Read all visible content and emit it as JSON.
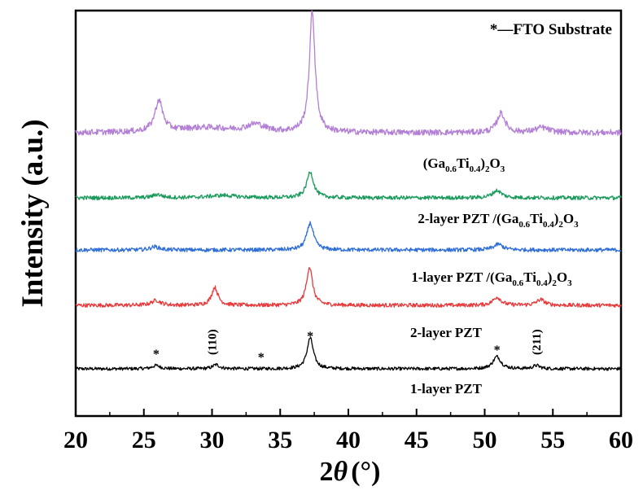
{
  "chart_data": {
    "type": "line",
    "title": "",
    "xlabel": {
      "prefix": "2",
      "symbol": "θ",
      "unit": "(°)"
    },
    "ylabel": "Intensity (a.u.)",
    "xlim": [
      20,
      60
    ],
    "xticks": [
      "20",
      "25",
      "30",
      "35",
      "40",
      "45",
      "50",
      "55",
      "60"
    ],
    "yticks_shown": false,
    "legend_note": "*—FTO Substrate",
    "series": [
      {
        "name": "1-layer PZT",
        "label_parts": [
          {
            "t": "1-layer PZT"
          }
        ],
        "color": "#000000",
        "offset": 0,
        "baseline": 10,
        "noise": 2,
        "peaks": [
          [
            25.9,
            4,
            0.35
          ],
          [
            30.3,
            5,
            0.3
          ],
          [
            37.2,
            38,
            0.28
          ],
          [
            50.9,
            15,
            0.35
          ],
          [
            53.8,
            4,
            0.3
          ]
        ]
      },
      {
        "name": "2-layer PZT",
        "label_parts": [
          {
            "t": "2-layer PZT"
          }
        ],
        "color": "#e8393b",
        "offset": 78,
        "baseline": 10,
        "noise": 2.4,
        "peaks": [
          [
            25.9,
            6,
            0.4
          ],
          [
            30.2,
            22,
            0.28
          ],
          [
            37.15,
            47,
            0.27
          ],
          [
            50.9,
            10,
            0.35
          ],
          [
            54.1,
            7,
            0.35
          ]
        ]
      },
      {
        "name": "1-layer PZT /(Ga0.6Ti0.4)2O3",
        "label_parts": [
          {
            "t": "1-layer PZT /(Ga"
          },
          {
            "sub": "0.6"
          },
          {
            "t": "Ti"
          },
          {
            "sub": "0.4"
          },
          {
            "t": ")"
          },
          {
            "sub": "2"
          },
          {
            "t": "O"
          },
          {
            "sub": "3"
          }
        ],
        "color": "#2e6ed6",
        "offset": 146,
        "baseline": 10,
        "noise": 2.4,
        "peaks": [
          [
            25.8,
            4,
            0.4
          ],
          [
            37.2,
            33,
            0.3
          ],
          [
            51.0,
            7,
            0.4
          ]
        ]
      },
      {
        "name": "2-layer PZT /(Ga0.6Ti0.4)2O3",
        "label_parts": [
          {
            "t": "2-layer PZT /(Ga"
          },
          {
            "sub": "0.6"
          },
          {
            "t": "Ti"
          },
          {
            "sub": "0.4"
          },
          {
            "t": ")"
          },
          {
            "sub": "2"
          },
          {
            "t": "O"
          },
          {
            "sub": "3"
          }
        ],
        "color": "#1a9b5c",
        "offset": 210,
        "baseline": 10,
        "noise": 2.4,
        "peaks": [
          [
            26.0,
            4,
            0.4
          ],
          [
            30.8,
            3,
            1.2
          ],
          [
            37.2,
            32,
            0.3
          ],
          [
            50.9,
            9,
            0.4
          ]
        ]
      },
      {
        "name": "(Ga0.6Ti0.4)2O3",
        "label_parts": [
          {
            "t": "(Ga"
          },
          {
            "sub": "0.6"
          },
          {
            "t": "Ti"
          },
          {
            "sub": "0.4"
          },
          {
            "t": ")"
          },
          {
            "sub": "2"
          },
          {
            "t": "O"
          },
          {
            "sub": "3"
          }
        ],
        "color": "#b37fd6",
        "offset": 290,
        "baseline": 10,
        "noise": 3.6,
        "peaks": [
          [
            26.1,
            38,
            0.35
          ],
          [
            29.5,
            6,
            2.5
          ],
          [
            33.2,
            9,
            0.8
          ],
          [
            37.35,
            148,
            0.25
          ],
          [
            51.2,
            24,
            0.35
          ],
          [
            54.2,
            6,
            0.6
          ]
        ]
      }
    ],
    "annotations": [
      {
        "text": "*",
        "x": 25.9,
        "series": "1-layer PZT"
      },
      {
        "text": "(110)",
        "x": 30.3,
        "series": "1-layer PZT",
        "rotated": true
      },
      {
        "text": "*",
        "x": 33.6,
        "series": "1-layer PZT"
      },
      {
        "text": "*",
        "x": 37.2,
        "series": "1-layer PZT"
      },
      {
        "text": "*",
        "x": 50.9,
        "series": "1-layer PZT"
      },
      {
        "text": "(211)",
        "x": 54.1,
        "series": "1-layer PZT",
        "rotated": true
      }
    ]
  }
}
